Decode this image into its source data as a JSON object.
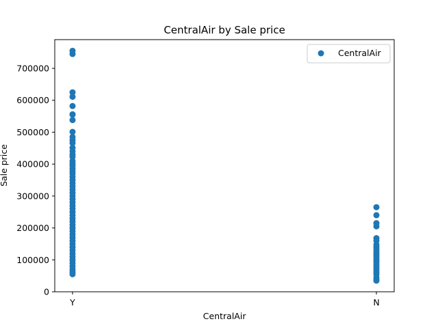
{
  "chart_data": {
    "type": "scatter",
    "title": "CentralAir by Sale price",
    "xlabel": "CentralAir",
    "ylabel": "Sale price",
    "categories": [
      "Y",
      "N"
    ],
    "ylim": [
      0,
      790000
    ],
    "y_ticks": [
      0,
      100000,
      200000,
      300000,
      400000,
      500000,
      600000,
      700000
    ],
    "y_tick_labels": [
      "0",
      "100000",
      "200000",
      "300000",
      "400000",
      "500000",
      "600000",
      "700000"
    ],
    "grid": false,
    "legend_position": "top-right",
    "series": [
      {
        "name": "CentralAir",
        "color": "#1f77b4",
        "points": [
          {
            "x": "Y",
            "y": 755000
          },
          {
            "x": "Y",
            "y": 745000
          },
          {
            "x": "Y",
            "y": 625000
          },
          {
            "x": "Y",
            "y": 611000
          },
          {
            "x": "Y",
            "y": 582000
          },
          {
            "x": "Y",
            "y": 556000
          },
          {
            "x": "Y",
            "y": 555000
          },
          {
            "x": "Y",
            "y": 538000
          },
          {
            "x": "Y",
            "y": 501000
          },
          {
            "x": "Y",
            "y": 485000
          },
          {
            "x": "Y",
            "y": 475000
          },
          {
            "x": "Y",
            "y": 466000
          },
          {
            "x": "Y",
            "y": 451000
          },
          {
            "x": "Y",
            "y": 440000
          },
          {
            "x": "Y",
            "y": 430000
          },
          {
            "x": "Y",
            "y": 423000
          },
          {
            "x": "Y",
            "y": 410000
          },
          {
            "x": "Y",
            "y": 402000
          },
          {
            "x": "Y",
            "y": 395000
          },
          {
            "x": "Y",
            "y": 386000
          },
          {
            "x": "Y",
            "y": 378000
          },
          {
            "x": "Y",
            "y": 370000
          },
          {
            "x": "Y",
            "y": 360000
          },
          {
            "x": "Y",
            "y": 350000
          },
          {
            "x": "Y",
            "y": 340000
          },
          {
            "x": "Y",
            "y": 330000
          },
          {
            "x": "Y",
            "y": 320000
          },
          {
            "x": "Y",
            "y": 310000
          },
          {
            "x": "Y",
            "y": 300000
          },
          {
            "x": "Y",
            "y": 290000
          },
          {
            "x": "Y",
            "y": 280000
          },
          {
            "x": "Y",
            "y": 270000
          },
          {
            "x": "Y",
            "y": 260000
          },
          {
            "x": "Y",
            "y": 250000
          },
          {
            "x": "Y",
            "y": 240000
          },
          {
            "x": "Y",
            "y": 230000
          },
          {
            "x": "Y",
            "y": 220000
          },
          {
            "x": "Y",
            "y": 210000
          },
          {
            "x": "Y",
            "y": 200000
          },
          {
            "x": "Y",
            "y": 190000
          },
          {
            "x": "Y",
            "y": 180000
          },
          {
            "x": "Y",
            "y": 170000
          },
          {
            "x": "Y",
            "y": 160000
          },
          {
            "x": "Y",
            "y": 150000
          },
          {
            "x": "Y",
            "y": 140000
          },
          {
            "x": "Y",
            "y": 130000
          },
          {
            "x": "Y",
            "y": 120000
          },
          {
            "x": "Y",
            "y": 110000
          },
          {
            "x": "Y",
            "y": 100000
          },
          {
            "x": "Y",
            "y": 90000
          },
          {
            "x": "Y",
            "y": 80000
          },
          {
            "x": "Y",
            "y": 70000
          },
          {
            "x": "Y",
            "y": 62000
          },
          {
            "x": "Y",
            "y": 55000
          },
          {
            "x": "N",
            "y": 265000
          },
          {
            "x": "N",
            "y": 240000
          },
          {
            "x": "N",
            "y": 215000
          },
          {
            "x": "N",
            "y": 205000
          },
          {
            "x": "N",
            "y": 168000
          },
          {
            "x": "N",
            "y": 160000
          },
          {
            "x": "N",
            "y": 148000
          },
          {
            "x": "N",
            "y": 140000
          },
          {
            "x": "N",
            "y": 133000
          },
          {
            "x": "N",
            "y": 125000
          },
          {
            "x": "N",
            "y": 118000
          },
          {
            "x": "N",
            "y": 112000
          },
          {
            "x": "N",
            "y": 105000
          },
          {
            "x": "N",
            "y": 98000
          },
          {
            "x": "N",
            "y": 92000
          },
          {
            "x": "N",
            "y": 85000
          },
          {
            "x": "N",
            "y": 78000
          },
          {
            "x": "N",
            "y": 70000
          },
          {
            "x": "N",
            "y": 62000
          },
          {
            "x": "N",
            "y": 55000
          },
          {
            "x": "N",
            "y": 45000
          },
          {
            "x": "N",
            "y": 38000
          },
          {
            "x": "N",
            "y": 35000
          }
        ]
      }
    ]
  }
}
